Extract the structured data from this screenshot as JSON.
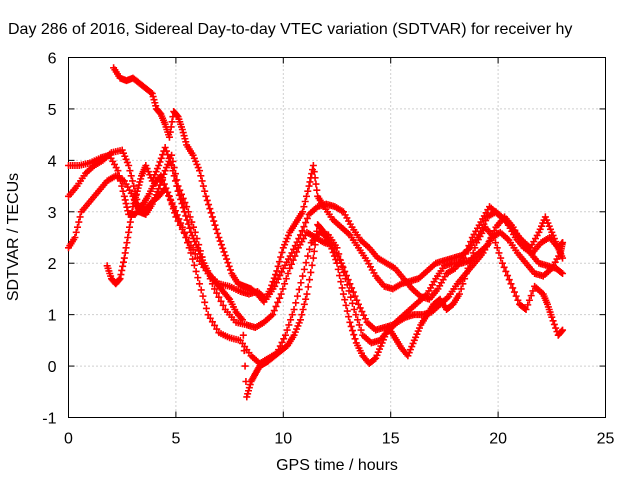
{
  "chart_data": {
    "type": "scatter",
    "title": "Day 286 of 2016, Sidereal Day-to-day VTEC variation (SDTVAR) for receiver hy",
    "xlabel": "GPS time / hours",
    "ylabel": "SDTVAR / TECUs",
    "xlim": [
      0,
      25
    ],
    "ylim": [
      -1,
      6
    ],
    "xticks": [
      0,
      5,
      10,
      15,
      20,
      25
    ],
    "yticks": [
      -1,
      0,
      1,
      2,
      3,
      4,
      5,
      6
    ],
    "grid": true,
    "marker": "+",
    "color": "#ff0000",
    "series": [
      {
        "values": [
          [
            0,
            3.9
          ],
          [
            0.5,
            3.9
          ],
          [
            1,
            3.95
          ],
          [
            1.5,
            4.05
          ],
          [
            1.9,
            4.1
          ],
          [
            2.3,
            3.8
          ],
          [
            2.6,
            3.3
          ],
          [
            2.8,
            2.95
          ],
          [
            3.1,
            2.95
          ],
          [
            3.4,
            3.1
          ],
          [
            3.7,
            3.3
          ],
          [
            4.0,
            3.55
          ],
          [
            4.3,
            3.7
          ],
          [
            4.7,
            3.3
          ],
          [
            5.0,
            2.9
          ],
          [
            5.5,
            2.5
          ],
          [
            6.0,
            2.1
          ],
          [
            6.5,
            1.8
          ],
          [
            7.0,
            1.6
          ],
          [
            7.5,
            1.55
          ],
          [
            8.0,
            1.45
          ],
          [
            8.4,
            1.4
          ],
          [
            8.8,
            1.45
          ],
          [
            9.2,
            1.3
          ],
          [
            9.6,
            1.55
          ],
          [
            10.0,
            1.9
          ],
          [
            10.4,
            2.2
          ],
          [
            10.8,
            2.55
          ],
          [
            11.2,
            2.95
          ],
          [
            11.6,
            3.1
          ],
          [
            12.0,
            3.15
          ],
          [
            12.4,
            3.1
          ],
          [
            12.8,
            3.0
          ],
          [
            13.2,
            2.7
          ],
          [
            13.6,
            2.45
          ],
          [
            14.0,
            2.3
          ],
          [
            14.4,
            2.1
          ],
          [
            14.8,
            2.0
          ],
          [
            15.2,
            1.9
          ],
          [
            15.6,
            1.7
          ],
          [
            16.0,
            1.5
          ],
          [
            16.4,
            1.35
          ],
          [
            16.8,
            1.3
          ],
          [
            17.2,
            1.5
          ],
          [
            17.6,
            1.8
          ],
          [
            18.0,
            1.9
          ],
          [
            18.4,
            2.1
          ],
          [
            18.8,
            2.5
          ],
          [
            19.2,
            2.8
          ],
          [
            19.6,
            3.1
          ],
          [
            20.0,
            2.95
          ],
          [
            20.4,
            2.8
          ],
          [
            20.8,
            2.5
          ],
          [
            21.2,
            2.3
          ],
          [
            21.6,
            2.2
          ],
          [
            22.0,
            2.4
          ],
          [
            22.4,
            2.5
          ],
          [
            22.8,
            2.3
          ],
          [
            23.0,
            2.1
          ]
        ]
      },
      {
        "values": [
          [
            0,
            3.3
          ],
          [
            0.4,
            3.5
          ],
          [
            0.8,
            3.75
          ],
          [
            1.2,
            3.9
          ],
          [
            1.6,
            4.0
          ],
          [
            2.0,
            4.15
          ],
          [
            2.5,
            4.2
          ],
          [
            2.8,
            3.9
          ],
          [
            3.1,
            3.4
          ],
          [
            3.3,
            3.0
          ],
          [
            3.6,
            2.95
          ],
          [
            3.9,
            3.15
          ],
          [
            4.2,
            3.45
          ],
          [
            4.5,
            3.8
          ],
          [
            4.8,
            4.1
          ],
          [
            5.1,
            3.5
          ],
          [
            5.5,
            3.1
          ],
          [
            5.9,
            2.6
          ],
          [
            6.3,
            2.0
          ],
          [
            6.8,
            1.5
          ],
          [
            7.3,
            1.1
          ],
          [
            7.8,
            0.85
          ],
          [
            8.3,
            0.8
          ],
          [
            8.7,
            0.75
          ],
          [
            9.1,
            0.85
          ],
          [
            9.5,
            1.0
          ],
          [
            9.9,
            1.4
          ],
          [
            10.3,
            1.9
          ],
          [
            10.7,
            2.3
          ],
          [
            11.1,
            2.6
          ],
          [
            11.5,
            2.5
          ],
          [
            11.9,
            2.4
          ],
          [
            12.3,
            2.35
          ],
          [
            12.7,
            2.0
          ],
          [
            13.1,
            1.6
          ],
          [
            13.5,
            1.2
          ],
          [
            13.9,
            0.85
          ],
          [
            14.3,
            0.7
          ],
          [
            14.7,
            0.75
          ],
          [
            15.1,
            0.8
          ],
          [
            15.5,
            0.95
          ],
          [
            15.9,
            1.1
          ],
          [
            16.3,
            1.25
          ],
          [
            16.7,
            1.4
          ],
          [
            17.1,
            1.7
          ],
          [
            17.5,
            1.95
          ],
          [
            17.9,
            2.0
          ],
          [
            18.3,
            2.0
          ],
          [
            18.7,
            2.05
          ],
          [
            19.1,
            2.2
          ],
          [
            19.5,
            2.35
          ],
          [
            19.9,
            2.7
          ],
          [
            20.3,
            2.9
          ],
          [
            20.7,
            2.7
          ],
          [
            21.1,
            2.4
          ],
          [
            21.5,
            2.2
          ],
          [
            21.9,
            2.0
          ],
          [
            22.3,
            1.95
          ],
          [
            22.7,
            1.9
          ],
          [
            23.0,
            1.8
          ]
        ]
      },
      {
        "values": [
          [
            0,
            2.3
          ],
          [
            0.3,
            2.5
          ],
          [
            0.6,
            3.0
          ],
          [
            1.0,
            3.2
          ],
          [
            1.4,
            3.4
          ],
          [
            1.8,
            3.6
          ],
          [
            2.2,
            3.7
          ],
          [
            2.6,
            3.6
          ],
          [
            3.0,
            3.3
          ],
          [
            3.3,
            3.0
          ],
          [
            3.6,
            3.05
          ],
          [
            3.9,
            3.2
          ],
          [
            4.2,
            3.3
          ],
          [
            4.5,
            3.45
          ],
          [
            4.9,
            3.1
          ],
          [
            5.3,
            2.7
          ],
          [
            5.7,
            2.2
          ],
          [
            6.1,
            1.6
          ],
          [
            6.5,
            1.0
          ],
          [
            7.0,
            0.65
          ],
          [
            7.5,
            0.55
          ],
          [
            8.0,
            0.5
          ],
          [
            8.5,
            0.2
          ],
          [
            8.9,
            0.05
          ],
          [
            9.3,
            0.15
          ],
          [
            9.7,
            0.25
          ],
          [
            10.1,
            0.6
          ],
          [
            10.5,
            1.1
          ],
          [
            10.9,
            1.75
          ],
          [
            11.3,
            2.4
          ],
          [
            11.7,
            2.6
          ],
          [
            12.1,
            2.55
          ],
          [
            12.5,
            2.3
          ],
          [
            12.9,
            1.7
          ],
          [
            13.3,
            1.1
          ],
          [
            13.7,
            0.6
          ],
          [
            14.1,
            0.45
          ],
          [
            14.5,
            0.5
          ],
          [
            14.9,
            0.7
          ],
          [
            15.3,
            0.85
          ],
          [
            15.7,
            0.95
          ],
          [
            16.1,
            1.0
          ],
          [
            16.5,
            1.0
          ],
          [
            16.9,
            1.05
          ],
          [
            17.3,
            1.2
          ],
          [
            17.7,
            1.35
          ],
          [
            18.1,
            1.6
          ],
          [
            18.5,
            1.8
          ],
          [
            18.9,
            2.0
          ],
          [
            19.3,
            2.2
          ],
          [
            19.7,
            2.5
          ],
          [
            20.1,
            2.6
          ],
          [
            20.5,
            2.45
          ],
          [
            20.9,
            2.2
          ],
          [
            21.3,
            2.0
          ],
          [
            21.7,
            1.8
          ],
          [
            22.1,
            1.75
          ],
          [
            22.5,
            1.9
          ],
          [
            22.9,
            2.2
          ],
          [
            23.0,
            2.4
          ]
        ]
      },
      {
        "values": [
          [
            1.8,
            1.95
          ],
          [
            2.0,
            1.7
          ],
          [
            2.2,
            1.6
          ],
          [
            2.4,
            1.7
          ],
          [
            2.6,
            2.1
          ],
          [
            2.8,
            2.6
          ],
          [
            3.0,
            3.1
          ],
          [
            3.2,
            3.4
          ],
          [
            3.4,
            3.7
          ],
          [
            3.6,
            3.9
          ],
          [
            3.9,
            3.6
          ],
          [
            4.2,
            3.9
          ],
          [
            4.5,
            4.25
          ],
          [
            4.8,
            3.9
          ],
          [
            5.1,
            3.4
          ],
          [
            5.4,
            3.0
          ],
          [
            5.7,
            2.6
          ],
          [
            6.0,
            2.3
          ],
          [
            6.3,
            2.0
          ],
          [
            6.6,
            1.75
          ],
          [
            6.9,
            1.6
          ],
          [
            7.2,
            1.45
          ],
          [
            7.5,
            1.3
          ],
          [
            7.8,
            1.05
          ],
          [
            8.1,
            0.9
          ],
          [
            8.3,
            -0.6
          ],
          [
            8.5,
            -0.3
          ],
          [
            8.7,
            -0.15
          ],
          [
            8.9,
            0.0
          ],
          [
            9.1,
            0.05
          ],
          [
            9.3,
            0.1
          ],
          [
            9.6,
            0.2
          ],
          [
            9.9,
            0.3
          ],
          [
            10.2,
            0.4
          ],
          [
            10.5,
            0.6
          ],
          [
            10.8,
            0.9
          ],
          [
            11.1,
            1.4
          ],
          [
            11.4,
            2.1
          ],
          [
            11.6,
            2.75
          ],
          [
            11.8,
            2.65
          ],
          [
            12.0,
            2.5
          ],
          [
            12.2,
            2.35
          ],
          [
            12.5,
            2.0
          ],
          [
            12.8,
            1.4
          ],
          [
            13.1,
            0.85
          ],
          [
            13.4,
            0.45
          ],
          [
            13.7,
            0.2
          ],
          [
            14.0,
            0.05
          ],
          [
            14.3,
            0.15
          ],
          [
            14.6,
            0.45
          ],
          [
            14.9,
            0.75
          ],
          [
            15.2,
            0.55
          ],
          [
            15.5,
            0.35
          ],
          [
            15.8,
            0.2
          ],
          [
            16.1,
            0.5
          ],
          [
            16.4,
            0.8
          ],
          [
            16.7,
            1.0
          ],
          [
            17.0,
            1.2
          ],
          [
            17.3,
            1.3
          ],
          [
            17.6,
            1.1
          ],
          [
            17.9,
            1.2
          ],
          [
            18.2,
            1.4
          ],
          [
            18.6,
            1.9
          ],
          [
            19.0,
            2.4
          ],
          [
            19.4,
            2.7
          ],
          [
            19.8,
            2.5
          ],
          [
            20.2,
            2.0
          ],
          [
            20.6,
            1.6
          ],
          [
            21.0,
            1.2
          ],
          [
            21.3,
            1.1
          ],
          [
            21.7,
            1.55
          ],
          [
            22.1,
            1.4
          ],
          [
            22.3,
            1.2
          ],
          [
            22.5,
            0.95
          ],
          [
            22.8,
            0.6
          ],
          [
            23.0,
            0.7
          ]
        ]
      },
      {
        "values": [
          [
            2.1,
            5.8
          ],
          [
            2.4,
            5.6
          ],
          [
            2.7,
            5.55
          ],
          [
            3.0,
            5.6
          ],
          [
            3.3,
            5.5
          ],
          [
            3.6,
            5.4
          ],
          [
            3.9,
            5.3
          ],
          [
            4.1,
            5.0
          ],
          [
            4.3,
            4.9
          ],
          [
            4.5,
            4.7
          ],
          [
            4.7,
            4.45
          ],
          [
            4.9,
            4.95
          ],
          [
            5.1,
            4.85
          ],
          [
            5.3,
            4.6
          ],
          [
            5.5,
            4.3
          ],
          [
            5.8,
            4.1
          ],
          [
            6.1,
            3.8
          ],
          [
            6.4,
            3.3
          ],
          [
            6.7,
            2.9
          ],
          [
            7.0,
            2.5
          ],
          [
            7.3,
            2.15
          ],
          [
            7.6,
            1.8
          ],
          [
            7.9,
            1.6
          ],
          [
            8.2,
            1.55
          ],
          [
            8.5,
            1.5
          ],
          [
            8.8,
            1.4
          ],
          [
            9.1,
            1.25
          ],
          [
            9.4,
            1.5
          ],
          [
            9.7,
            1.85
          ],
          [
            10.0,
            2.3
          ],
          [
            10.3,
            2.6
          ],
          [
            10.6,
            2.8
          ],
          [
            10.9,
            3.0
          ],
          [
            11.2,
            3.5
          ],
          [
            11.4,
            3.9
          ],
          [
            11.6,
            3.3
          ],
          [
            11.9,
            3.1
          ],
          [
            12.3,
            2.85
          ],
          [
            12.7,
            2.7
          ],
          [
            13.1,
            2.55
          ],
          [
            13.5,
            2.3
          ],
          [
            13.9,
            2.05
          ],
          [
            14.3,
            1.75
          ],
          [
            14.7,
            1.55
          ],
          [
            15.1,
            1.5
          ],
          [
            15.5,
            1.6
          ],
          [
            15.9,
            1.65
          ],
          [
            16.3,
            1.7
          ],
          [
            16.7,
            1.85
          ],
          [
            17.1,
            2.0
          ],
          [
            17.5,
            2.05
          ],
          [
            17.9,
            2.1
          ],
          [
            18.3,
            2.15
          ],
          [
            18.7,
            2.3
          ],
          [
            19.1,
            2.55
          ],
          [
            19.5,
            2.9
          ],
          [
            19.9,
            3.0
          ],
          [
            20.3,
            2.85
          ],
          [
            20.7,
            2.65
          ],
          [
            21.1,
            2.45
          ],
          [
            21.5,
            2.3
          ],
          [
            21.9,
            2.6
          ],
          [
            22.2,
            2.9
          ],
          [
            22.5,
            2.6
          ],
          [
            22.8,
            2.3
          ],
          [
            23.0,
            2.4
          ]
        ]
      }
    ]
  }
}
